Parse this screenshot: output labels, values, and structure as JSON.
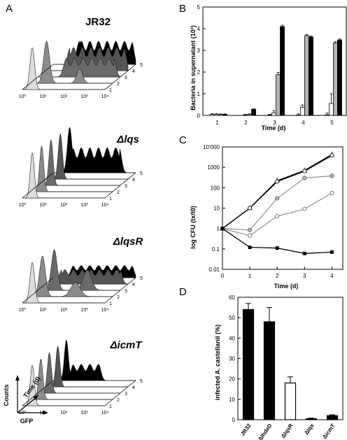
{
  "panel_letters": [
    "A",
    "B",
    "C",
    "D"
  ],
  "chart_data": [
    {
      "panel": "A",
      "type": "area",
      "description_text": {
        "strains": [
          "JR32",
          "Δlqs",
          "ΔlqsR",
          "ΔicmT"
        ],
        "time_ticks": [
          "1",
          "2",
          "3",
          "4",
          "5"
        ],
        "log_ticks": [
          "10⁰",
          "10¹",
          "10²",
          "10³",
          "10⁴"
        ],
        "axis_counts": "Counts",
        "axis_time": "Time (d)",
        "axis_gfp": "GFP"
      }
    },
    {
      "panel": "B",
      "type": "bar",
      "ylabel": "Bacteria in supernatant (10³)",
      "xlabel": "Time (d)",
      "categories": [
        "1",
        "2",
        "3",
        "4",
        "5"
      ],
      "ylim": [
        0,
        5
      ],
      "yticks": [
        "0",
        "1",
        "2",
        "3",
        "4",
        "5"
      ],
      "series": [
        {
          "values": [
            0.05,
            0.0,
            0.02,
            0.02,
            0.03
          ],
          "errors": [
            0.03,
            0.0,
            0.03,
            0.05,
            0.08
          ],
          "fill": "#ffffff"
        },
        {
          "values": [
            0.05,
            0.02,
            0.12,
            0.38,
            0.55
          ],
          "errors": [
            0.03,
            0.03,
            0.1,
            0.1,
            0.45
          ],
          "fill": "#ffffff"
        },
        {
          "values": [
            0.05,
            0.05,
            1.88,
            3.68,
            3.35
          ],
          "errors": [
            0.02,
            0.02,
            0.1,
            0.05,
            0.05
          ],
          "fill": "#b3b3b3"
        },
        {
          "values": [
            0.05,
            0.28,
            4.1,
            3.62,
            3.48
          ],
          "errors": [
            0.02,
            0.03,
            0.06,
            0.04,
            0.04
          ],
          "fill": "#000000"
        }
      ]
    },
    {
      "panel": "C",
      "type": "line",
      "ylabel": "log CFU (tx/t0)",
      "xlabel": "Time (d)",
      "x": [
        0,
        1,
        2,
        3,
        4
      ],
      "yscale": "log",
      "ylim": [
        0.01,
        10000
      ],
      "yticks": [
        "0.01",
        "0.1",
        "1",
        "10",
        "100",
        "1000",
        "10'000"
      ],
      "xticks": [
        "0",
        "1",
        "2",
        "3",
        "4"
      ],
      "series": [
        {
          "values": [
            1,
            10,
            220,
            700,
            4200
          ],
          "marker": "triangle-open",
          "color": "#000000"
        },
        {
          "values": [
            1,
            10,
            200,
            650,
            3800
          ],
          "marker": "circle-open",
          "color": "#000000"
        },
        {
          "values": [
            1,
            0.85,
            30,
            300,
            380
          ],
          "marker": "circle-grey",
          "color": "#999999"
        },
        {
          "values": [
            1,
            0.45,
            4,
            9,
            55
          ],
          "marker": "circle-open",
          "color": "#999999"
        },
        {
          "values": [
            1,
            0.12,
            0.11,
            0.06,
            0.07
          ],
          "marker": "square",
          "color": "#000000"
        }
      ]
    },
    {
      "panel": "D",
      "type": "bar",
      "ylabel": "infected A. castellanii (%)",
      "categories": [
        "JR32",
        "ΔlhdeD",
        "ΔlqsR",
        "Δlqs",
        "ΔicmT"
      ],
      "ylim": [
        0,
        60
      ],
      "yticks": [
        "0",
        "10",
        "20",
        "30",
        "40",
        "50",
        "60"
      ],
      "values": [
        54,
        48,
        18,
        0.5,
        2
      ],
      "errors": [
        3,
        7,
        3,
        0.3,
        0.4
      ],
      "fills": [
        "#000000",
        "#000000",
        "#ffffff",
        "#000000",
        "#000000"
      ]
    }
  ]
}
